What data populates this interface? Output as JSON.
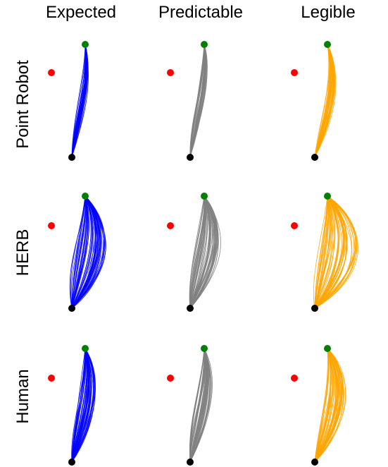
{
  "columns": [
    {
      "label": "Expected",
      "color": "#0000ff"
    },
    {
      "label": "Predictable",
      "color": "#808080"
    },
    {
      "label": "Legible",
      "color": "#ffa500"
    }
  ],
  "rows": [
    {
      "label": "Point Robot"
    },
    {
      "label": "HERB"
    },
    {
      "label": "Human"
    }
  ],
  "markers": {
    "goal_color": "#008000",
    "other_goal_color": "#ff0000",
    "start_color": "#000000"
  }
}
